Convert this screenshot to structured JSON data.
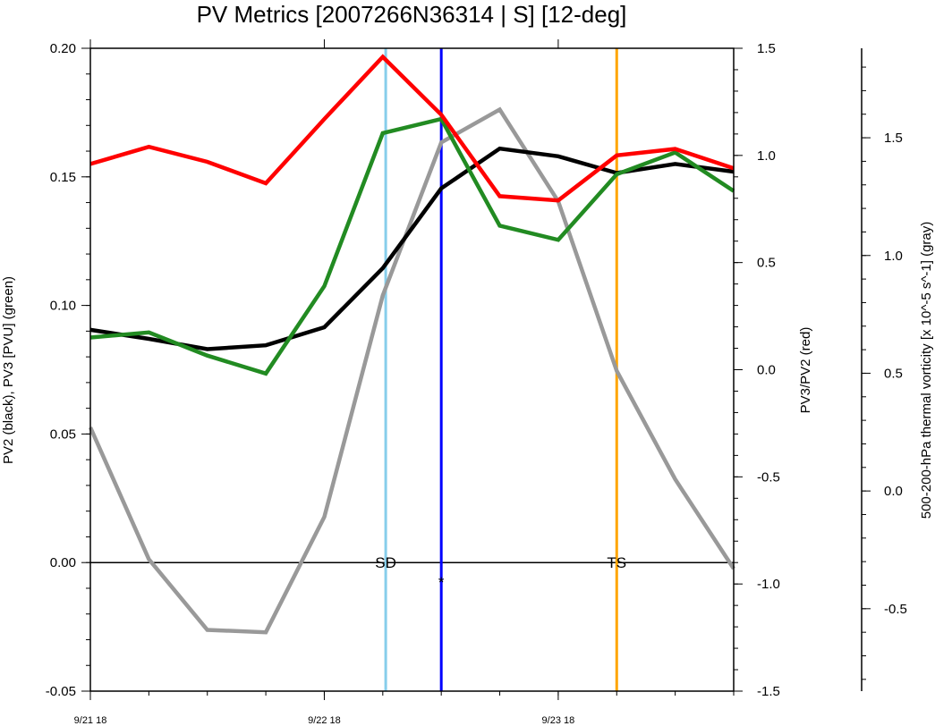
{
  "chart_data": {
    "type": "line",
    "title": "PV Metrics [2007266N36314 | S] [12-deg]",
    "x_labels": [
      "9/21 18",
      "9/22 18",
      "9/23 18"
    ],
    "x_tick_positions": [
      0,
      4,
      8
    ],
    "xlim": [
      0,
      11
    ],
    "left_axis": {
      "label": "PV2 (black), PV3 [PVU] (green)",
      "ylim": [
        -0.05,
        0.2
      ],
      "ticks": [
        "0.20",
        "0.15",
        "0.10",
        "0.05",
        "0.00",
        "-0.05"
      ],
      "tick_values": [
        0.2,
        0.15,
        0.1,
        0.05,
        0.0,
        -0.05
      ]
    },
    "right_axis": {
      "label": "PV3/PV2 (red)",
      "ylim": [
        -1.5,
        1.5
      ],
      "ticks": [
        "1.5",
        "1.0",
        "0.5",
        "0.0",
        "-0.5",
        "-1.0",
        "-1.5"
      ],
      "tick_values": [
        1.5,
        1.0,
        0.5,
        0.0,
        -0.5,
        -1.0,
        -1.5
      ]
    },
    "far_right_axis": {
      "label": "500-200-hPa thermal vorticity [x 10^-5 s^-1] (gray)",
      "ylim": [
        -0.85,
        1.88
      ],
      "ticks": [
        "1.5",
        "1.0",
        "0.5",
        "0.0",
        "-0.5"
      ],
      "tick_values": [
        1.5,
        1.0,
        0.5,
        0.0,
        -0.5
      ]
    },
    "series": [
      {
        "name": "PV2",
        "axis": "left",
        "color": "#000000",
        "x": [
          0,
          1,
          2,
          3,
          4,
          5,
          6,
          7,
          8,
          9,
          10,
          11
        ],
        "values": [
          0.0905,
          0.087,
          0.083,
          0.0845,
          0.0915,
          0.1145,
          0.1455,
          0.161,
          0.158,
          0.1515,
          0.155,
          0.152
        ]
      },
      {
        "name": "PV3",
        "axis": "left",
        "color": "#228B22",
        "x": [
          0,
          1,
          2,
          3,
          4,
          5,
          6,
          7,
          8,
          9,
          10,
          11
        ],
        "values": [
          0.0875,
          0.0895,
          0.0805,
          0.0735,
          0.1075,
          0.167,
          0.1725,
          0.131,
          0.1255,
          0.151,
          0.1595,
          0.1445
        ]
      },
      {
        "name": "PV3/PV2",
        "axis": "right",
        "color": "#ff0000",
        "x": [
          0,
          1,
          2,
          3,
          4,
          5,
          6,
          7,
          8,
          9,
          10,
          11
        ],
        "values": [
          0.96,
          1.04,
          0.97,
          0.87,
          1.17,
          1.46,
          1.19,
          0.81,
          0.79,
          1.0,
          1.03,
          0.94
        ]
      },
      {
        "name": "thermal vorticity",
        "axis": "far_right",
        "color": "#999999",
        "x": [
          0,
          1,
          2,
          3,
          4,
          5,
          6,
          7,
          8,
          9,
          10,
          11
        ],
        "values": [
          0.27,
          -0.29,
          -0.59,
          -0.6,
          -0.11,
          0.83,
          1.48,
          1.62,
          1.23,
          0.51,
          0.05,
          -0.33
        ]
      }
    ],
    "zero_line": 0.0,
    "vertical_lines": [
      {
        "name": "SD",
        "x": 5.05,
        "color": "#87CEEB"
      },
      {
        "name": "",
        "x": 6.0,
        "color": "#0000ff"
      },
      {
        "name": "TS",
        "x": 9.0,
        "color": "#FFA500"
      }
    ],
    "annotations": [
      {
        "text": "SD",
        "x": 5.05,
        "y": 0.0
      },
      {
        "text": "*",
        "x": 6.0,
        "y": 0.0
      },
      {
        "text": "TS",
        "x": 9.0,
        "y": 0.0
      }
    ]
  }
}
